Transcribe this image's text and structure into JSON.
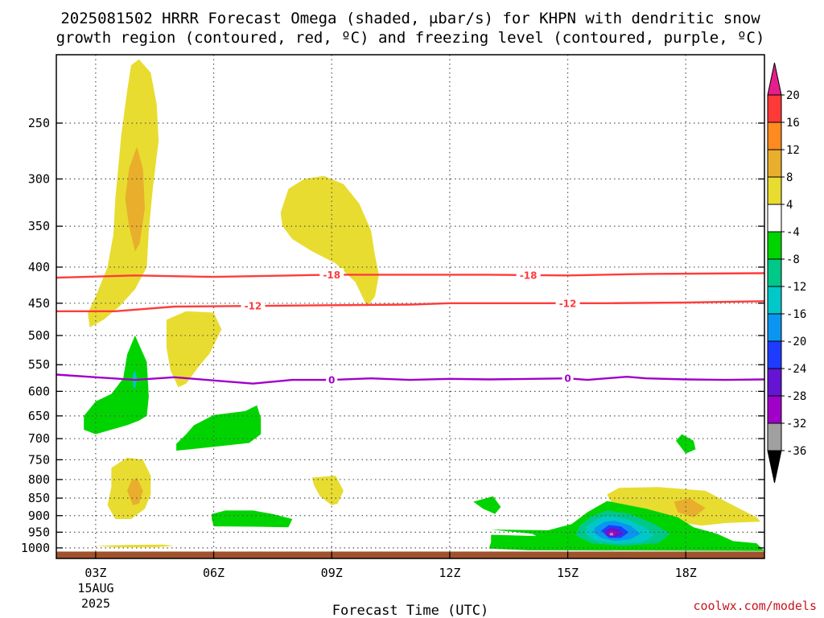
{
  "title": {
    "line1": "2025081502 HRRR Forecast Omega (shaded, μbar/s) for KHPN with dendritic snow",
    "line2": "growth region (contoured, red, ºC) and freezing level (contoured, purple, ºC)"
  },
  "watermark": "coolwx.com/models",
  "chart_data": {
    "type": "heatmap",
    "xlabel": "Forecast Time (UTC)",
    "ylabel": "",
    "x_ticks": [
      "03Z",
      "06Z",
      "09Z",
      "12Z",
      "15Z",
      "18Z"
    ],
    "x_hours": [
      3,
      6,
      9,
      12,
      15,
      18
    ],
    "x_date_label": [
      "15AUG",
      "2025"
    ],
    "xlim_hours": [
      2,
      20
    ],
    "y_ticks": [
      250,
      300,
      350,
      400,
      450,
      500,
      550,
      600,
      650,
      700,
      750,
      800,
      850,
      900,
      950,
      1000
    ],
    "ylim_hPa": [
      200,
      1035
    ],
    "y_axis_inverted": true,
    "y_axis_log": true,
    "grid": true,
    "colorbar": {
      "labels": [
        "20",
        "16",
        "12",
        "8",
        "4",
        "-4",
        "-8",
        "-12",
        "-16",
        "-20",
        "-24",
        "-28",
        "-32",
        "-36"
      ],
      "bins": [
        {
          "lo": 16,
          "hi": 20,
          "color": "#ff3838"
        },
        {
          "lo": 12,
          "hi": 16,
          "color": "#ff8a20"
        },
        {
          "lo": 8,
          "hi": 12,
          "color": "#e8ae2c"
        },
        {
          "lo": 4,
          "hi": 8,
          "color": "#e8dc30"
        },
        {
          "lo": -4,
          "hi": 4,
          "color": "#ffffff"
        },
        {
          "lo": -8,
          "hi": -4,
          "color": "#00d400"
        },
        {
          "lo": -12,
          "hi": -8,
          "color": "#00c888"
        },
        {
          "lo": -16,
          "hi": -12,
          "color": "#00c8c8"
        },
        {
          "lo": -20,
          "hi": -16,
          "color": "#0a96f0"
        },
        {
          "lo": -24,
          "hi": -20,
          "color": "#1e3cff"
        },
        {
          "lo": -28,
          "hi": -24,
          "color": "#6414d2"
        },
        {
          "lo": -32,
          "hi": -28,
          "color": "#a000c8"
        },
        {
          "lo": -36,
          "hi": -32,
          "color": "#a0a0a0"
        }
      ],
      "over_color": "#e61e8c",
      "under_color": "#000000"
    },
    "contours": [
      {
        "value": -18,
        "label": "-18",
        "color": "#ff3c3c",
        "points": [
          [
            2,
            414
          ],
          [
            4,
            411
          ],
          [
            6,
            413
          ],
          [
            8,
            411
          ],
          [
            9,
            410
          ],
          [
            11,
            410
          ],
          [
            13,
            410
          ],
          [
            15,
            411
          ],
          [
            17,
            409
          ],
          [
            20,
            408
          ]
        ],
        "label_hours": [
          9,
          14
        ]
      },
      {
        "value": -12,
        "label": "-12",
        "color": "#ff3c3c",
        "points": [
          [
            2,
            462
          ],
          [
            3.5,
            462
          ],
          [
            5,
            455
          ],
          [
            7,
            454
          ],
          [
            9,
            453
          ],
          [
            11,
            452
          ],
          [
            12,
            450
          ],
          [
            14,
            450
          ],
          [
            16,
            450
          ],
          [
            18,
            449
          ],
          [
            20,
            447
          ]
        ],
        "label_hours": [
          7,
          15
        ]
      },
      {
        "value": 0,
        "label": "0",
        "color": "#a000c8",
        "points": [
          [
            2,
            568
          ],
          [
            3,
            573
          ],
          [
            4,
            578
          ],
          [
            5,
            573
          ],
          [
            6,
            579
          ],
          [
            7,
            585
          ],
          [
            8,
            578
          ],
          [
            9,
            578
          ],
          [
            10,
            575
          ],
          [
            11,
            578
          ],
          [
            12,
            576
          ],
          [
            13,
            577
          ],
          [
            15,
            575
          ],
          [
            15.5,
            578
          ],
          [
            16.5,
            572
          ],
          [
            17,
            575
          ],
          [
            18,
            577
          ],
          [
            19,
            578
          ],
          [
            20,
            577
          ]
        ],
        "label_hours": [
          9,
          15
        ]
      }
    ],
    "shaded_regions": [
      {
        "bin": "4..8",
        "points": [
          [
            3.9,
            207
          ],
          [
            4.1,
            203
          ],
          [
            4.4,
            212
          ],
          [
            4.55,
            235
          ],
          [
            4.6,
            265
          ],
          [
            4.45,
            310
          ],
          [
            4.35,
            355
          ],
          [
            4.3,
            400
          ],
          [
            4.0,
            430
          ],
          [
            3.6,
            455
          ],
          [
            3.2,
            475
          ],
          [
            2.85,
            487
          ],
          [
            2.8,
            465
          ],
          [
            3.0,
            440
          ],
          [
            3.3,
            400
          ],
          [
            3.45,
            360
          ],
          [
            3.5,
            320
          ],
          [
            3.65,
            260
          ],
          [
            3.8,
            225
          ]
        ]
      },
      {
        "bin": "8..12",
        "points": [
          [
            4.05,
            270
          ],
          [
            4.2,
            290
          ],
          [
            4.25,
            330
          ],
          [
            4.12,
            370
          ],
          [
            4.0,
            380
          ],
          [
            3.85,
            350
          ],
          [
            3.75,
            320
          ],
          [
            3.85,
            290
          ]
        ]
      },
      {
        "bin": "4..8",
        "points": [
          [
            7.7,
            335
          ],
          [
            7.9,
            310
          ],
          [
            8.3,
            300
          ],
          [
            8.8,
            297
          ],
          [
            9.3,
            305
          ],
          [
            9.7,
            325
          ],
          [
            10.0,
            355
          ],
          [
            10.1,
            385
          ],
          [
            10.2,
            410
          ],
          [
            10.1,
            440
          ],
          [
            9.9,
            455
          ],
          [
            9.6,
            420
          ],
          [
            9.1,
            395
          ],
          [
            8.5,
            380
          ],
          [
            8.0,
            365
          ],
          [
            7.75,
            350
          ]
        ]
      },
      {
        "bin": "4..8",
        "points": [
          [
            4.8,
            475
          ],
          [
            5.3,
            462
          ],
          [
            6.0,
            464
          ],
          [
            6.2,
            490
          ],
          [
            5.9,
            530
          ],
          [
            5.6,
            555
          ],
          [
            5.3,
            585
          ],
          [
            5.1,
            592
          ],
          [
            4.9,
            560
          ],
          [
            4.8,
            520
          ]
        ]
      },
      {
        "bin": "-8..-4",
        "points": [
          [
            3.8,
            532
          ],
          [
            4.0,
            500
          ],
          [
            4.3,
            545
          ],
          [
            4.35,
            610
          ],
          [
            4.3,
            650
          ],
          [
            4.1,
            660
          ],
          [
            3.8,
            670
          ],
          [
            3.0,
            690
          ],
          [
            2.7,
            680
          ],
          [
            2.7,
            650
          ],
          [
            3.0,
            620
          ],
          [
            3.4,
            605
          ],
          [
            3.7,
            575
          ]
        ]
      },
      {
        "bin": "-16..-12",
        "points": [
          [
            3.95,
            568
          ],
          [
            4.0,
            560
          ],
          [
            4.05,
            575
          ],
          [
            4.0,
            595
          ],
          [
            3.95,
            590
          ]
        ]
      },
      {
        "bin": "-8..-4",
        "points": [
          [
            5.3,
            690
          ],
          [
            5.5,
            670
          ],
          [
            6.0,
            648
          ],
          [
            6.8,
            640
          ],
          [
            7.1,
            628
          ],
          [
            7.2,
            655
          ],
          [
            7.2,
            690
          ],
          [
            6.9,
            710
          ],
          [
            5.4,
            725
          ],
          [
            5.05,
            728
          ],
          [
            5.05,
            712
          ]
        ]
      },
      {
        "bin": "4..8",
        "points": [
          [
            3.4,
            770
          ],
          [
            3.8,
            745
          ],
          [
            4.2,
            750
          ],
          [
            4.4,
            790
          ],
          [
            4.4,
            840
          ],
          [
            4.25,
            880
          ],
          [
            3.9,
            910
          ],
          [
            3.5,
            910
          ],
          [
            3.3,
            870
          ],
          [
            3.4,
            820
          ]
        ]
      },
      {
        "bin": "8..12",
        "points": [
          [
            3.9,
            805
          ],
          [
            4.05,
            795
          ],
          [
            4.2,
            830
          ],
          [
            4.1,
            865
          ],
          [
            3.95,
            870
          ],
          [
            3.8,
            830
          ]
        ]
      },
      {
        "bin": "4..8",
        "points": [
          [
            3.0,
            993
          ],
          [
            3.8,
            990
          ],
          [
            4.7,
            989
          ],
          [
            5.0,
            993
          ],
          [
            4.5,
            998
          ],
          [
            3.5,
            998
          ]
        ]
      },
      {
        "bin": "4..8",
        "points": [
          [
            8.5,
            795
          ],
          [
            9.1,
            790
          ],
          [
            9.3,
            830
          ],
          [
            9.15,
            865
          ],
          [
            9.0,
            870
          ],
          [
            8.7,
            845
          ],
          [
            8.55,
            815
          ]
        ]
      },
      {
        "bin": "-8..-4",
        "points": [
          [
            5.95,
            895
          ],
          [
            6.3,
            885
          ],
          [
            7.0,
            885
          ],
          [
            7.5,
            895
          ],
          [
            8.0,
            910
          ],
          [
            7.9,
            935
          ],
          [
            7.0,
            933
          ],
          [
            6.0,
            932
          ],
          [
            5.95,
            910
          ]
        ]
      },
      {
        "bin": "-8..-4",
        "points": [
          [
            12.6,
            860
          ],
          [
            13.1,
            845
          ],
          [
            13.3,
            875
          ],
          [
            13.15,
            895
          ],
          [
            12.85,
            880
          ]
        ]
      },
      {
        "bin": "-8..-4",
        "points": [
          [
            18.0,
            735
          ],
          [
            17.75,
            705
          ],
          [
            17.9,
            690
          ],
          [
            18.2,
            705
          ],
          [
            18.25,
            725
          ]
        ]
      },
      {
        "bin": "4..8",
        "points": [
          [
            16.0,
            840
          ],
          [
            16.3,
            822
          ],
          [
            17.3,
            820
          ],
          [
            18.5,
            830
          ],
          [
            19.2,
            870
          ],
          [
            19.8,
            905
          ],
          [
            19.9,
            918
          ],
          [
            19.0,
            922
          ],
          [
            18.4,
            930
          ],
          [
            17.3,
            910
          ],
          [
            16.5,
            885
          ],
          [
            16.1,
            860
          ]
        ]
      },
      {
        "bin": "8..12",
        "points": [
          [
            17.7,
            860
          ],
          [
            18.1,
            850
          ],
          [
            18.5,
            878
          ],
          [
            18.2,
            905
          ],
          [
            17.8,
            890
          ]
        ]
      },
      {
        "bin": "-8..-4",
        "points": [
          [
            13.05,
            942
          ],
          [
            14.5,
            944
          ],
          [
            15.1,
            925
          ],
          [
            15.5,
            890
          ],
          [
            16.0,
            858
          ],
          [
            17.0,
            880
          ],
          [
            17.8,
            905
          ],
          [
            18.2,
            935
          ],
          [
            18.8,
            955
          ],
          [
            19.2,
            978
          ],
          [
            19.8,
            985
          ],
          [
            20.0,
            1010
          ],
          [
            14.0,
            1008
          ],
          [
            13.0,
            1002
          ],
          [
            13.05,
            980
          ],
          [
            13.05,
            958
          ],
          [
            14.2,
            962
          ],
          [
            14.1,
            955
          ]
        ]
      },
      {
        "bin": "-12..-8",
        "points": [
          [
            15.3,
            930
          ],
          [
            15.6,
            902
          ],
          [
            16.0,
            885
          ],
          [
            16.6,
            895
          ],
          [
            17.2,
            925
          ],
          [
            17.6,
            955
          ],
          [
            17.3,
            985
          ],
          [
            16.4,
            993
          ],
          [
            15.6,
            985
          ],
          [
            15.2,
            960
          ]
        ]
      },
      {
        "bin": "-16..-12",
        "points": [
          [
            15.5,
            930
          ],
          [
            15.75,
            910
          ],
          [
            16.0,
            900
          ],
          [
            16.5,
            910
          ],
          [
            16.95,
            935
          ],
          [
            17.2,
            960
          ],
          [
            16.9,
            982
          ],
          [
            16.3,
            987
          ],
          [
            15.7,
            978
          ],
          [
            15.45,
            955
          ]
        ]
      },
      {
        "bin": "-20..-16",
        "points": [
          [
            15.7,
            935
          ],
          [
            15.95,
            918
          ],
          [
            16.2,
            915
          ],
          [
            16.6,
            930
          ],
          [
            16.85,
            955
          ],
          [
            16.6,
            972
          ],
          [
            16.2,
            978
          ],
          [
            15.85,
            968
          ],
          [
            15.65,
            950
          ]
        ]
      },
      {
        "bin": "-24..-20",
        "points": [
          [
            15.85,
            945
          ],
          [
            16.05,
            928
          ],
          [
            16.35,
            932
          ],
          [
            16.55,
            950
          ],
          [
            16.35,
            968
          ],
          [
            16.05,
            968
          ]
        ]
      },
      {
        "bin": "-28..-24",
        "points": [
          [
            15.92,
            948
          ],
          [
            16.1,
            936
          ],
          [
            16.3,
            942
          ],
          [
            16.4,
            955
          ],
          [
            16.2,
            966
          ],
          [
            16.0,
            962
          ]
        ]
      },
      {
        "bin": "-32..-28",
        "points": [
          [
            15.98,
            952
          ],
          [
            16.12,
            943
          ],
          [
            16.28,
            950
          ],
          [
            16.2,
            962
          ],
          [
            16.05,
            960
          ]
        ]
      },
      {
        "bin": "-36..-32",
        "points": [
          [
            16.06,
            954
          ],
          [
            16.14,
            951
          ],
          [
            16.16,
            960
          ],
          [
            16.07,
            960
          ]
        ]
      }
    ],
    "terrain_color": "#a0522d"
  }
}
